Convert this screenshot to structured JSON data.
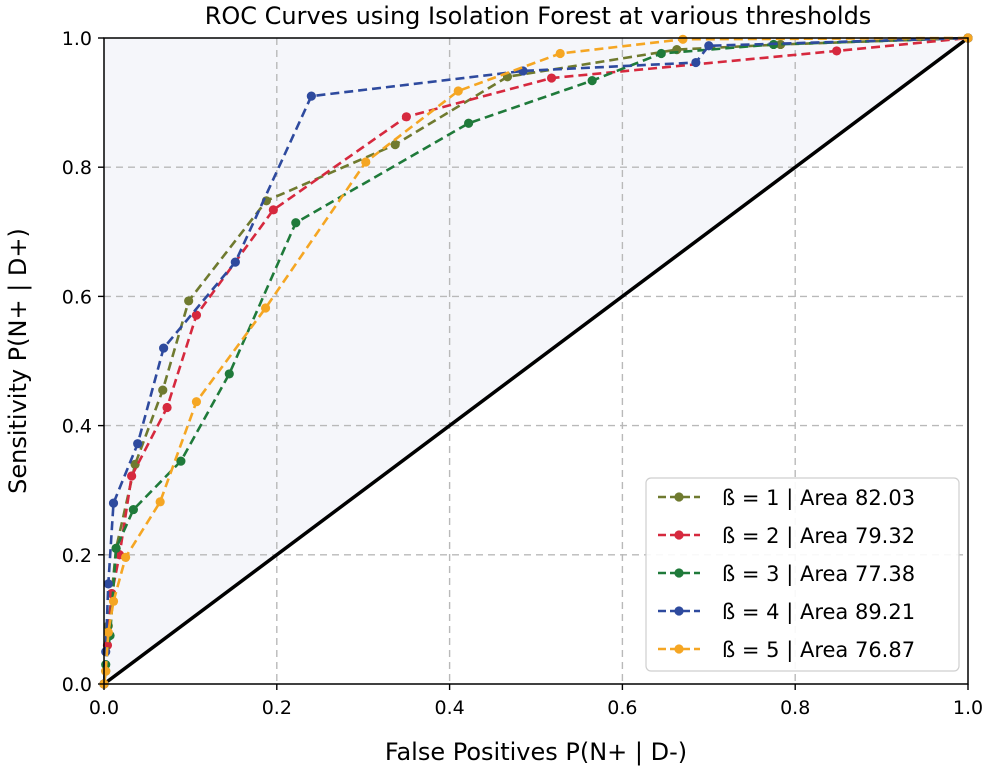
{
  "chart_data": {
    "type": "line",
    "title": "ROC Curves using Isolation Forest at various thresholds",
    "xlabel": "False Positives P(N+ | D-)",
    "ylabel": "Sensitivity P(N+ | D+)",
    "xlim": [
      0.0,
      1.0
    ],
    "ylim": [
      0.0,
      1.0
    ],
    "xticks": [
      "0.0",
      "0.2",
      "0.4",
      "0.6",
      "0.8",
      "1.0"
    ],
    "yticks": [
      "0.0",
      "0.2",
      "0.4",
      "0.6",
      "0.8",
      "1.0"
    ],
    "grid": true,
    "legend_position": "lower-right",
    "diagonal": {
      "x": [
        0,
        1
      ],
      "y": [
        0,
        1
      ],
      "color": "#000000"
    },
    "series": [
      {
        "name": "ß = 1 | Area 82.03",
        "color": "#6f7a2f",
        "x": [
          0.0,
          0.002,
          0.005,
          0.009,
          0.014,
          0.036,
          0.068,
          0.098,
          0.188,
          0.337,
          0.467,
          0.663,
          0.783,
          1.0
        ],
        "y": [
          0.0,
          0.02,
          0.09,
          0.14,
          0.21,
          0.34,
          0.455,
          0.593,
          0.748,
          0.835,
          0.94,
          0.982,
          0.99,
          1.0
        ]
      },
      {
        "name": "ß = 2 | Area 79.32",
        "color": "#d6293e",
        "x": [
          0.0,
          0.004,
          0.009,
          0.018,
          0.032,
          0.073,
          0.107,
          0.196,
          0.35,
          0.518,
          0.848,
          1.0
        ],
        "y": [
          0.0,
          0.06,
          0.14,
          0.2,
          0.322,
          0.428,
          0.571,
          0.734,
          0.878,
          0.938,
          0.98,
          1.0
        ]
      },
      {
        "name": "ß = 3 | Area 77.38",
        "color": "#1f7a3a",
        "x": [
          0.0,
          0.002,
          0.007,
          0.014,
          0.034,
          0.089,
          0.145,
          0.222,
          0.422,
          0.565,
          0.645,
          0.775,
          1.0
        ],
        "y": [
          0.0,
          0.03,
          0.075,
          0.21,
          0.27,
          0.345,
          0.48,
          0.714,
          0.868,
          0.934,
          0.976,
          0.99,
          1.0
        ]
      },
      {
        "name": "ß = 4 | Area 89.21",
        "color": "#2e4a9e",
        "x": [
          0.0,
          0.002,
          0.005,
          0.011,
          0.039,
          0.069,
          0.152,
          0.24,
          0.485,
          0.685,
          0.7,
          1.0
        ],
        "y": [
          0.0,
          0.05,
          0.155,
          0.28,
          0.372,
          0.52,
          0.653,
          0.91,
          0.949,
          0.962,
          0.988,
          1.0
        ]
      },
      {
        "name": "ß = 5 | Area 76.87",
        "color": "#f5a623",
        "x": [
          0.0,
          0.002,
          0.005,
          0.011,
          0.025,
          0.065,
          0.107,
          0.187,
          0.303,
          0.41,
          0.528,
          0.67,
          1.0
        ],
        "y": [
          0.0,
          0.02,
          0.08,
          0.128,
          0.196,
          0.282,
          0.437,
          0.582,
          0.808,
          0.918,
          0.976,
          0.998,
          1.0
        ]
      }
    ]
  }
}
